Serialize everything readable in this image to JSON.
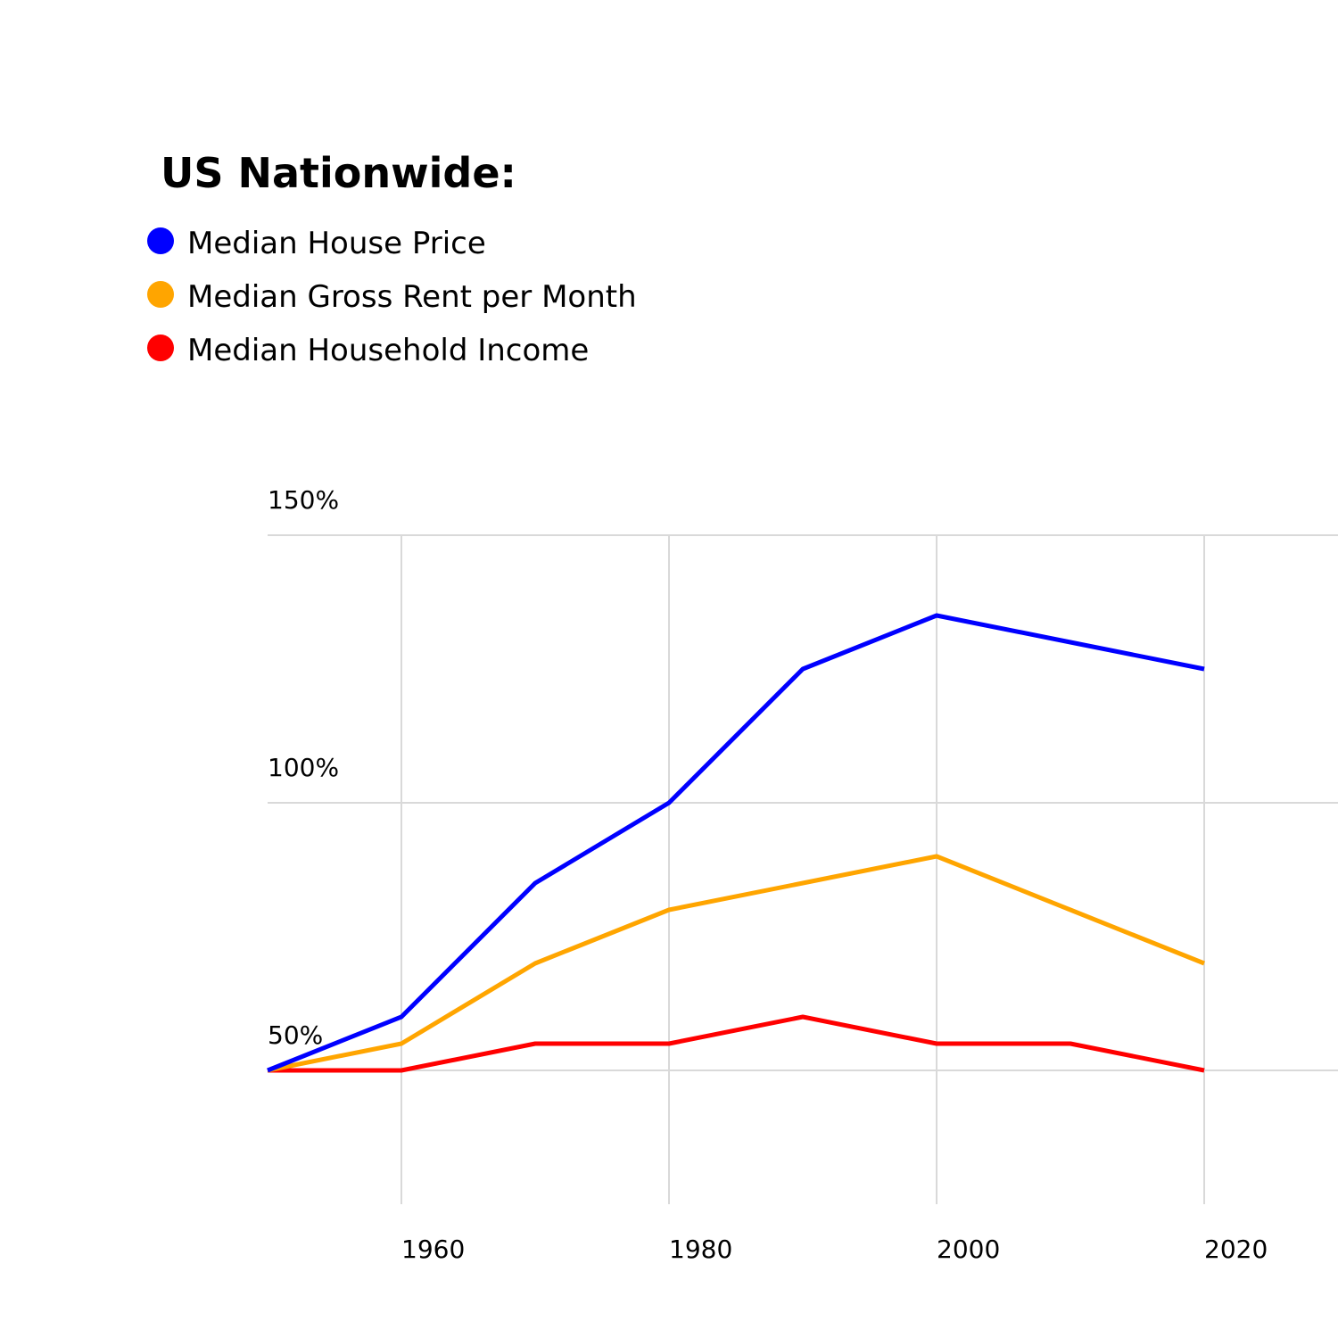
{
  "chart_data": {
    "type": "line",
    "title": "US Nationwide:",
    "xlabel": "",
    "ylabel": "",
    "x": [
      1950,
      1960,
      1970,
      1980,
      1990,
      2000,
      2010,
      2020
    ],
    "xlim": [
      1950,
      2030
    ],
    "ylim": [
      25,
      150
    ],
    "x_ticks": [
      {
        "value": 1960,
        "label": "1960"
      },
      {
        "value": 1980,
        "label": "1980"
      },
      {
        "value": 2000,
        "label": "2000"
      },
      {
        "value": 2020,
        "label": "2020"
      }
    ],
    "y_ticks": [
      {
        "value": 50,
        "label": "50%"
      },
      {
        "value": 100,
        "label": "100%"
      },
      {
        "value": 150,
        "label": "150%"
      }
    ],
    "grid": true,
    "legend_position": "top-left",
    "series": [
      {
        "name": "Median House Price",
        "color": "#0000ff",
        "values": [
          50,
          60,
          85,
          100,
          125,
          135,
          130,
          125
        ]
      },
      {
        "name": "Median Gross Rent per Month",
        "color": "#ffa500",
        "values": [
          50,
          55,
          70,
          80,
          85,
          90,
          80,
          70
        ]
      },
      {
        "name": "Median Household Income",
        "color": "#ff0000",
        "values": [
          50,
          50,
          55,
          55,
          60,
          55,
          55,
          50
        ]
      }
    ]
  }
}
